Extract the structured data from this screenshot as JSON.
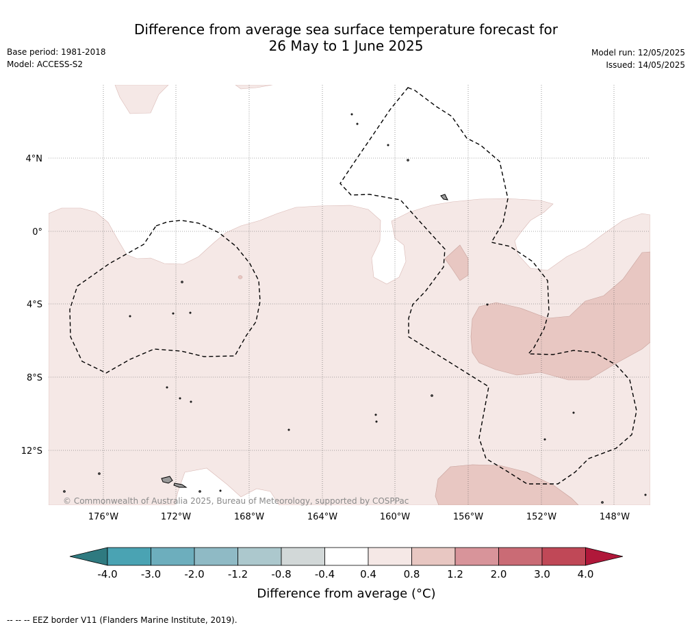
{
  "header": {
    "title_line1": "Difference from average sea surface temperature forecast for",
    "title_line2": "26 May to 1 June 2025",
    "base_period": "Base period: 1981-2018",
    "model": "Model: ACCESS-S2",
    "model_run": "Model run: 12/05/2025",
    "issued": "Issued: 14/05/2025"
  },
  "map": {
    "latitude_labels": [
      "4°N",
      "0°",
      "4°S",
      "8°S",
      "12°S"
    ],
    "longitude_labels": [
      "176°W",
      "172°W",
      "168°W",
      "164°W",
      "160°W",
      "156°W",
      "152°W",
      "148°W"
    ],
    "copyright": "© Commonwealth of Australia 2025, Bureau of Meteorology, supported by COSPPac",
    "colors": {
      "ocean_neutral": "#ffffff",
      "anomaly_0_4_0_8": "#f5e8e6",
      "anomaly_0_8_1_2": "#e8c7c2",
      "land": "#9a9a9a",
      "eez_border": "#000000",
      "gridline": "#555555"
    }
  },
  "colorbar": {
    "tick_labels": [
      "-4.0",
      "-3.0",
      "-2.0",
      "-1.2",
      "-0.8",
      "-0.4",
      "0.4",
      "0.8",
      "1.2",
      "2.0",
      "3.0",
      "4.0"
    ],
    "colors": [
      "#2f7a80",
      "#4aa3b3",
      "#6daebd",
      "#8fbac5",
      "#acc8cd",
      "#d2d8d8",
      "#ffffff",
      "#f5e8e6",
      "#e8c7c2",
      "#d8949a",
      "#ca6b75",
      "#c04857",
      "#b0183a"
    ],
    "label": "Difference from average (°C)"
  },
  "footer": {
    "legend_symbol": "-- -- --",
    "eez_note": "EEZ border V11 (Flanders Marine Institute, 2019)."
  }
}
